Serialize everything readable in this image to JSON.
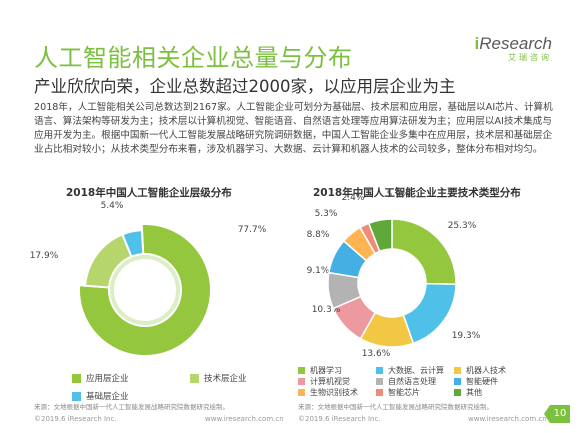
{
  "header": {
    "title": "人工智能相关企业总量与分布",
    "subtitle": "产业欣欣向荣，企业总数超过2000家，以应用层企业为主",
    "logo_brand_i": "i",
    "logo_brand": "Research",
    "logo_sub": "艾瑞咨询"
  },
  "body_text": "2018年，人工智能相关公司总数达到2167家。人工智能企业可划分为基础层、技术层和应用层，基础层以AI芯片、计算机语言、算法架构等研发为主；技术层以计算机视觉、智能语音、自然语言处理等应用算法研发为主；应用层以AI技术集成与应用开发为主。根据中国新一代人工智能发展战略研究院调研数据，中国人工智能企业多集中在应用层，技术层和基础层企业占比相对较小；从技术类型分布来看，涉及机器学习、大数据、云计算和机器人技术的公司较多，整体分布相对均匀。",
  "colors": {
    "accent": "#7cc03f",
    "app_layer": "#94c63e",
    "tech_layer": "#a9cf58",
    "base_layer": "#4fc0e8"
  },
  "chart_data": [
    {
      "type": "pie",
      "title": "2018年中国人工智能企业层级分布",
      "categories": [
        "应用层企业",
        "技术层企业",
        "基础层企业"
      ],
      "values": [
        77.7,
        17.9,
        5.4
      ],
      "value_labels": [
        "77.7%",
        "17.9%",
        "5.4%"
      ],
      "colors": [
        "#94c63e",
        "#b6d66b",
        "#4fc0e8"
      ],
      "legend_position": "bottom"
    },
    {
      "type": "pie",
      "title": "2018年中国人工智能企业主要技术类型分布",
      "categories": [
        "机器学习",
        "大数据、云计算",
        "机器人技术",
        "计算机视觉",
        "自然语言处理",
        "智能硬件",
        "生物识别技术",
        "智能芯片",
        "其他"
      ],
      "values": [
        25.3,
        19.3,
        13.6,
        10.3,
        9.1,
        8.8,
        5.3,
        2.4,
        5.9
      ],
      "value_labels": [
        "25.3%",
        "19.3%",
        "13.6%",
        "10.3%",
        "9.1%",
        "8.8%",
        "5.3%",
        "2.4%",
        "5.9%"
      ],
      "colors": [
        "#94c63e",
        "#4fc0e8",
        "#f2c744",
        "#ec9aa0",
        "#b3b3b3",
        "#45aee2",
        "#ffb453",
        "#f08a79",
        "#5fa83a"
      ],
      "legend_position": "bottom"
    }
  ],
  "note_left": "来源：文地根据中国新一代人工智能发展战略研究院数据研究绘制。",
  "note_right": "来源：文地根据中国新一代人工智能发展战略研究院数据研究绘制。",
  "footer": {
    "copyright_left": "©2019.6 iResearch Inc.",
    "site_left": "www.iresearch.com.cn",
    "copyright_right": "©2019.6 iResearch Inc.",
    "site_right": "www.iresearch.com.cn",
    "page": "10"
  }
}
